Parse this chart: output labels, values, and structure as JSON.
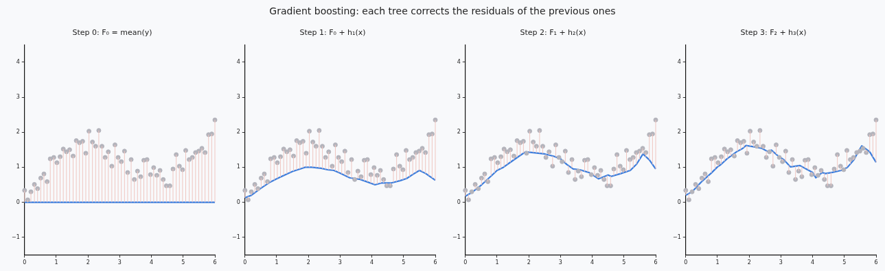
{
  "chart_data": [
    {
      "type": "other",
      "title": "Gradient boosting: each tree corrects the residuals of the previous ones"
    },
    {
      "type": "scatter",
      "title": "Step 0: F₀ = mean(y)",
      "xlim": [
        0,
        6
      ],
      "xticks": [
        0,
        1,
        2,
        3,
        4,
        5,
        6
      ],
      "ylim": [
        -1.5,
        4.5
      ],
      "yticks": [
        -1,
        0,
        1,
        2,
        3,
        4
      ],
      "grid": false,
      "legend": false,
      "series": [
        {
          "type": "scatter",
          "marker": "circle",
          "color": "#b4b4bc",
          "x": [
            0,
            0.1,
            0.2,
            0.31,
            0.41,
            0.51,
            0.61,
            0.71,
            0.81,
            0.92,
            1.02,
            1.12,
            1.22,
            1.32,
            1.42,
            1.53,
            1.63,
            1.73,
            1.83,
            1.93,
            2.03,
            2.14,
            2.24,
            2.34,
            2.44,
            2.54,
            2.64,
            2.75,
            2.85,
            2.95,
            3.05,
            3.15,
            3.25,
            3.36,
            3.46,
            3.56,
            3.66,
            3.76,
            3.86,
            3.97,
            4.07,
            4.17,
            4.27,
            4.37,
            4.47,
            4.58,
            4.68,
            4.78,
            4.88,
            4.98,
            5.08,
            5.19,
            5.29,
            5.39,
            5.49,
            5.59,
            5.69,
            5.8,
            5.9,
            6.0
          ],
          "values": [
            0.34,
            0.07,
            0.3,
            0.51,
            0.39,
            0.69,
            0.81,
            0.59,
            1.24,
            1.28,
            1.13,
            1.3,
            1.52,
            1.44,
            1.5,
            1.32,
            1.76,
            1.7,
            1.74,
            1.4,
            2.03,
            1.72,
            1.6,
            2.05,
            1.6,
            1.28,
            1.44,
            1.03,
            1.64,
            1.28,
            1.16,
            1.46,
            0.85,
            1.22,
            0.65,
            0.89,
            0.73,
            1.2,
            1.22,
            0.79,
            0.99,
            0.77,
            0.91,
            0.65,
            0.47,
            0.47,
            0.95,
            1.36,
            1.03,
            0.93,
            1.48,
            1.22,
            1.28,
            1.42,
            1.46,
            1.54,
            1.42,
            1.93,
            1.95,
            2.35
          ],
          "errors": [
            [
              0,
              0.34
            ],
            [
              0,
              0.07
            ],
            [
              0,
              0.3
            ],
            [
              0,
              0.51
            ],
            [
              0,
              0.39
            ],
            [
              0,
              0.69
            ],
            [
              0,
              0.81
            ],
            [
              0,
              0.59
            ],
            [
              0,
              1.24
            ],
            [
              0,
              1.28
            ],
            [
              0,
              1.13
            ],
            [
              0,
              1.3
            ],
            [
              0,
              1.52
            ],
            [
              0,
              1.44
            ],
            [
              0,
              1.5
            ],
            [
              0,
              1.32
            ],
            [
              0,
              1.76
            ],
            [
              0,
              1.7
            ],
            [
              0,
              1.74
            ],
            [
              0,
              1.4
            ],
            [
              0,
              2.03
            ],
            [
              0,
              1.72
            ],
            [
              0,
              1.6
            ],
            [
              0,
              2.05
            ],
            [
              0,
              1.6
            ],
            [
              0,
              1.28
            ],
            [
              0,
              1.44
            ],
            [
              0,
              1.03
            ],
            [
              0,
              1.64
            ],
            [
              0,
              1.28
            ],
            [
              0,
              1.16
            ],
            [
              0,
              1.46
            ],
            [
              0,
              0.85
            ],
            [
              0,
              1.22
            ],
            [
              0,
              0.65
            ],
            [
              0,
              0.89
            ],
            [
              0,
              0.73
            ],
            [
              0,
              1.2
            ],
            [
              0,
              1.22
            ],
            [
              0,
              0.79
            ],
            [
              0,
              0.99
            ],
            [
              0,
              0.77
            ],
            [
              0,
              0.91
            ],
            [
              0,
              0.65
            ],
            [
              0,
              0.47
            ],
            [
              0,
              0.47
            ],
            [
              0,
              0.95
            ],
            [
              0,
              1.36
            ],
            [
              0,
              1.03
            ],
            [
              0,
              0.93
            ],
            [
              0,
              1.48
            ],
            [
              0,
              1.22
            ],
            [
              0,
              1.28
            ],
            [
              0,
              1.42
            ],
            [
              0,
              1.46
            ],
            [
              0,
              1.54
            ],
            [
              0,
              1.42
            ],
            [
              0,
              1.93
            ],
            [
              0,
              1.95
            ],
            [
              0,
              2.35
            ]
          ]
        },
        {
          "type": "line",
          "color": "#3b7ddd",
          "x": [
            0,
            6
          ],
          "values": [
            0,
            0
          ]
        }
      ]
    },
    {
      "type": "scatter",
      "title": "Step 1: F₀ + h₁(x)",
      "xlim": [
        0,
        6
      ],
      "xticks": [
        0,
        1,
        2,
        3,
        4,
        5,
        6
      ],
      "ylim": [
        -1.5,
        4.5
      ],
      "yticks": [
        -1,
        0,
        1,
        2,
        3,
        4
      ],
      "grid": false,
      "legend": false,
      "series": [
        {
          "type": "scatter",
          "marker": "circle",
          "color": "#b4b4bc",
          "x": [
            0,
            0.1,
            0.2,
            0.31,
            0.41,
            0.51,
            0.61,
            0.71,
            0.81,
            0.92,
            1.02,
            1.12,
            1.22,
            1.32,
            1.42,
            1.53,
            1.63,
            1.73,
            1.83,
            1.93,
            2.03,
            2.14,
            2.24,
            2.34,
            2.44,
            2.54,
            2.64,
            2.75,
            2.85,
            2.95,
            3.05,
            3.15,
            3.25,
            3.36,
            3.46,
            3.56,
            3.66,
            3.76,
            3.86,
            3.97,
            4.07,
            4.17,
            4.27,
            4.37,
            4.47,
            4.58,
            4.68,
            4.78,
            4.88,
            4.98,
            5.08,
            5.19,
            5.29,
            5.39,
            5.49,
            5.59,
            5.69,
            5.8,
            5.9,
            6.0
          ],
          "values": [
            0.34,
            0.07,
            0.3,
            0.51,
            0.39,
            0.69,
            0.81,
            0.59,
            1.24,
            1.28,
            1.13,
            1.3,
            1.52,
            1.44,
            1.5,
            1.32,
            1.76,
            1.7,
            1.74,
            1.4,
            2.03,
            1.72,
            1.6,
            2.05,
            1.6,
            1.28,
            1.44,
            1.03,
            1.64,
            1.28,
            1.16,
            1.46,
            0.85,
            1.22,
            0.65,
            0.89,
            0.73,
            1.2,
            1.22,
            0.79,
            0.99,
            0.77,
            0.91,
            0.65,
            0.47,
            0.47,
            0.95,
            1.36,
            1.03,
            0.93,
            1.48,
            1.22,
            1.28,
            1.42,
            1.46,
            1.54,
            1.42,
            1.93,
            1.95,
            2.35
          ],
          "errors": [
            [
              0.13,
              0.34
            ],
            [
              0.07,
              0.17
            ],
            [
              0.2,
              0.3
            ],
            [
              0.27,
              0.51
            ],
            [
              0.34,
              0.39
            ],
            [
              0.41,
              0.69
            ],
            [
              0.47,
              0.81
            ],
            [
              0.53,
              0.59
            ],
            [
              0.58,
              1.24
            ],
            [
              0.63,
              1.28
            ],
            [
              0.68,
              1.13
            ],
            [
              0.72,
              1.3
            ],
            [
              0.77,
              1.52
            ],
            [
              0.81,
              1.44
            ],
            [
              0.85,
              1.5
            ],
            [
              0.89,
              1.32
            ],
            [
              0.92,
              1.76
            ],
            [
              0.95,
              1.7
            ],
            [
              0.98,
              1.74
            ],
            [
              1.0,
              1.4
            ],
            [
              1.0,
              2.03
            ],
            [
              1.0,
              1.72
            ],
            [
              0.99,
              1.6
            ],
            [
              0.98,
              2.05
            ],
            [
              0.96,
              1.6
            ],
            [
              0.94,
              1.28
            ],
            [
              0.93,
              1.44
            ],
            [
              0.92,
              1.03
            ],
            [
              0.89,
              1.64
            ],
            [
              0.85,
              1.28
            ],
            [
              0.81,
              1.16
            ],
            [
              0.77,
              1.46
            ],
            [
              0.72,
              0.85
            ],
            [
              0.69,
              1.22
            ],
            [
              0.65,
              0.68
            ],
            [
              0.67,
              0.89
            ],
            [
              0.64,
              0.73
            ],
            [
              0.61,
              1.2
            ],
            [
              0.58,
              1.22
            ],
            [
              0.54,
              0.79
            ],
            [
              0.51,
              0.99
            ],
            [
              0.52,
              0.77
            ],
            [
              0.54,
              0.91
            ],
            [
              0.55,
              0.65
            ],
            [
              0.47,
              0.55
            ],
            [
              0.47,
              0.55
            ],
            [
              0.57,
              0.95
            ],
            [
              0.59,
              1.36
            ],
            [
              0.62,
              1.03
            ],
            [
              0.64,
              0.93
            ],
            [
              0.67,
              1.48
            ],
            [
              0.73,
              1.22
            ],
            [
              0.79,
              1.28
            ],
            [
              0.85,
              1.42
            ],
            [
              0.9,
              1.46
            ],
            [
              0.87,
              1.54
            ],
            [
              0.82,
              1.42
            ],
            [
              0.76,
              1.93
            ],
            [
              0.69,
              1.95
            ],
            [
              0.63,
              2.35
            ]
          ]
        },
        {
          "type": "line",
          "color": "#3b7ddd",
          "x": [
            0,
            0.2,
            0.5,
            0.8,
            1,
            1.3,
            1.5,
            1.8,
            1.9,
            2.1,
            2.4,
            2.6,
            2.8,
            3,
            3.3,
            3.6,
            3.8,
            4.1,
            4.3,
            4.6,
            4.9,
            5.1,
            5.3,
            5.5,
            5.7,
            6
          ],
          "values": [
            0.13,
            0.2,
            0.4,
            0.58,
            0.67,
            0.8,
            0.88,
            0.97,
            1.0,
            1.0,
            0.97,
            0.93,
            0.91,
            0.83,
            0.7,
            0.66,
            0.6,
            0.5,
            0.55,
            0.55,
            0.62,
            0.68,
            0.8,
            0.91,
            0.82,
            0.63
          ]
        }
      ]
    },
    {
      "type": "scatter",
      "title": "Step 2: F₁ + h₂(x)",
      "xlim": [
        0,
        6
      ],
      "xticks": [
        0,
        1,
        2,
        3,
        4,
        5,
        6
      ],
      "ylim": [
        -1.5,
        4.5
      ],
      "yticks": [
        -1,
        0,
        1,
        2,
        3,
        4
      ],
      "grid": false,
      "legend": false,
      "series": [
        {
          "type": "scatter",
          "marker": "circle",
          "color": "#b4b4bc",
          "x": [
            0,
            0.1,
            0.2,
            0.31,
            0.41,
            0.51,
            0.61,
            0.71,
            0.81,
            0.92,
            1.02,
            1.12,
            1.22,
            1.32,
            1.42,
            1.53,
            1.63,
            1.73,
            1.83,
            1.93,
            2.03,
            2.14,
            2.24,
            2.34,
            2.44,
            2.54,
            2.64,
            2.75,
            2.85,
            2.95,
            3.05,
            3.15,
            3.25,
            3.36,
            3.46,
            3.56,
            3.66,
            3.76,
            3.86,
            3.97,
            4.07,
            4.17,
            4.27,
            4.37,
            4.47,
            4.58,
            4.68,
            4.78,
            4.88,
            4.98,
            5.08,
            5.19,
            5.29,
            5.39,
            5.49,
            5.59,
            5.69,
            5.8,
            5.9,
            6.0
          ],
          "values": [
            0.34,
            0.07,
            0.3,
            0.51,
            0.39,
            0.69,
            0.81,
            0.59,
            1.24,
            1.28,
            1.13,
            1.3,
            1.52,
            1.44,
            1.5,
            1.32,
            1.76,
            1.7,
            1.74,
            1.4,
            2.03,
            1.72,
            1.6,
            2.05,
            1.6,
            1.28,
            1.44,
            1.03,
            1.64,
            1.28,
            1.16,
            1.46,
            0.85,
            1.22,
            0.65,
            0.89,
            0.73,
            1.2,
            1.22,
            0.79,
            0.99,
            0.77,
            0.91,
            0.65,
            0.47,
            0.47,
            0.95,
            1.36,
            1.03,
            0.93,
            1.48,
            1.22,
            1.28,
            1.42,
            1.46,
            1.54,
            1.42,
            1.93,
            1.95,
            2.35
          ],
          "errors": [
            [
              0.17,
              0.34
            ],
            [
              0.07,
              0.23
            ],
            null,
            [
              0.36,
              0.51
            ],
            null,
            [
              0.5,
              0.69
            ],
            [
              0.58,
              0.81
            ],
            [
              0.59,
              0.67
            ],
            [
              0.75,
              1.24
            ],
            [
              0.84,
              1.28
            ],
            [
              0.92,
              1.13
            ],
            [
              0.96,
              1.3
            ],
            [
              1.01,
              1.52
            ],
            [
              1.08,
              1.44
            ],
            [
              1.14,
              1.5
            ],
            [
              1.21,
              1.32
            ],
            [
              1.28,
              1.76
            ],
            [
              1.34,
              1.7
            ],
            [
              1.4,
              1.74
            ],
            null,
            [
              1.43,
              2.03
            ],
            [
              1.42,
              1.72
            ],
            [
              1.41,
              1.6
            ],
            [
              1.4,
              2.05
            ],
            [
              1.39,
              1.6
            ],
            [
              1.28,
              1.37
            ],
            [
              1.35,
              1.44
            ],
            [
              1.03,
              1.32
            ],
            [
              1.29,
              1.64
            ],
            null,
            null,
            [
              1.12,
              1.46
            ],
            [
              0.85,
              1.05
            ],
            [
              0.98,
              1.22
            ],
            [
              0.65,
              0.94
            ],
            null,
            [
              0.73,
              0.91
            ],
            [
              0.88,
              1.2
            ],
            [
              0.86,
              1.22
            ],
            null,
            [
              0.75,
              0.99
            ],
            [
              0.69,
              0.77
            ],
            [
              0.7,
              0.91
            ],
            [
              0.65,
              0.73
            ],
            [
              0.47,
              0.77
            ],
            [
              0.47,
              0.75
            ],
            [
              0.76,
              0.95
            ],
            [
              0.79,
              1.36
            ],
            [
              0.81,
              1.03
            ],
            [
              0.84,
              0.93
            ],
            [
              0.87,
              1.48
            ],
            [
              0.91,
              1.22
            ],
            [
              0.99,
              1.28
            ],
            [
              1.08,
              1.42
            ],
            [
              1.22,
              1.46
            ],
            [
              1.37,
              1.54
            ],
            [
              1.29,
              1.42
            ],
            [
              1.21,
              1.93
            ],
            [
              1.08,
              1.95
            ],
            [
              0.95,
              2.35
            ]
          ]
        },
        {
          "type": "line",
          "color": "#3b7ddd",
          "x": [
            0,
            0.2,
            0.5,
            0.8,
            1,
            1.2,
            1.4,
            1.7,
            1.9,
            2.2,
            2.5,
            2.8,
            3,
            3.2,
            3.4,
            3.6,
            3.9,
            4.2,
            4.5,
            4.6,
            4.9,
            5.2,
            5.4,
            5.6,
            5.8,
            6
          ],
          "values": [
            0.17,
            0.28,
            0.49,
            0.74,
            0.91,
            1.0,
            1.13,
            1.32,
            1.44,
            1.41,
            1.38,
            1.31,
            1.24,
            1.08,
            0.95,
            0.93,
            0.85,
            0.67,
            0.78,
            0.74,
            0.82,
            0.91,
            1.09,
            1.38,
            1.21,
            0.95
          ]
        }
      ]
    },
    {
      "type": "scatter",
      "title": "Step 3: F₂ + h₃(x)",
      "xlim": [
        0,
        6
      ],
      "xticks": [
        0,
        1,
        2,
        3,
        4,
        5,
        6
      ],
      "ylim": [
        -1.5,
        4.5
      ],
      "yticks": [
        -1,
        0,
        1,
        2,
        3,
        4
      ],
      "grid": false,
      "legend": false,
      "series": [
        {
          "type": "scatter",
          "marker": "circle",
          "color": "#b4b4bc",
          "x": [
            0,
            0.1,
            0.2,
            0.31,
            0.41,
            0.51,
            0.61,
            0.71,
            0.81,
            0.92,
            1.02,
            1.12,
            1.22,
            1.32,
            1.42,
            1.53,
            1.63,
            1.73,
            1.83,
            1.93,
            2.03,
            2.14,
            2.24,
            2.34,
            2.44,
            2.54,
            2.64,
            2.75,
            2.85,
            2.95,
            3.05,
            3.15,
            3.25,
            3.36,
            3.46,
            3.56,
            3.66,
            3.76,
            3.86,
            3.97,
            4.07,
            4.17,
            4.27,
            4.37,
            4.47,
            4.58,
            4.68,
            4.78,
            4.88,
            4.98,
            5.08,
            5.19,
            5.29,
            5.39,
            5.49,
            5.59,
            5.69,
            5.8,
            5.9,
            6.0
          ],
          "values": [
            0.34,
            0.07,
            0.3,
            0.51,
            0.39,
            0.69,
            0.81,
            0.59,
            1.24,
            1.28,
            1.13,
            1.3,
            1.52,
            1.44,
            1.5,
            1.32,
            1.76,
            1.7,
            1.74,
            1.4,
            2.03,
            1.72,
            1.6,
            2.05,
            1.6,
            1.28,
            1.44,
            1.03,
            1.64,
            1.28,
            1.16,
            1.46,
            0.85,
            1.22,
            0.65,
            0.89,
            0.73,
            1.2,
            1.22,
            0.79,
            0.99,
            0.77,
            0.91,
            0.65,
            0.47,
            0.47,
            0.95,
            1.36,
            1.03,
            0.93,
            1.48,
            1.22,
            1.28,
            1.42,
            1.46,
            1.54,
            1.42,
            1.93,
            1.95,
            2.35
          ],
          "errors": [
            [
              0.2,
              0.34
            ],
            [
              0.07,
              0.25
            ],
            null,
            [
              0.41,
              0.51
            ],
            [
              0.39,
              0.5
            ],
            [
              0.6,
              0.69
            ],
            [
              0.68,
              0.81
            ],
            [
              0.59,
              0.76
            ],
            [
              0.84,
              1.24
            ],
            [
              0.94,
              1.28
            ],
            [
              1.02,
              1.13
            ],
            [
              1.09,
              1.3
            ],
            [
              1.17,
              1.52
            ],
            [
              1.25,
              1.44
            ],
            [
              1.32,
              1.5
            ],
            [
              1.32,
              1.39
            ],
            [
              1.45,
              1.76
            ],
            [
              1.5,
              1.7
            ],
            [
              1.56,
              1.74
            ],
            [
              1.4,
              1.62
            ],
            [
              1.6,
              2.03
            ],
            [
              1.58,
              1.72
            ],
            [
              1.57,
              1.6
            ],
            [
              1.55,
              2.05
            ],
            [
              1.52,
              1.6
            ],
            [
              1.28,
              1.47
            ],
            null,
            [
              1.03,
              1.45
            ],
            [
              1.37,
              1.64
            ],
            null,
            [
              1.16,
              1.24
            ],
            [
              1.16,
              1.46
            ],
            [
              0.85,
              1.06
            ],
            [
              1.02,
              1.22
            ],
            [
              0.65,
              1.03
            ],
            [
              0.89,
              1.04
            ],
            [
              0.73,
              1.02
            ],
            [
              0.97,
              1.2
            ],
            [
              0.92,
              1.22
            ],
            [
              0.79,
              0.87
            ],
            [
              0.75,
              0.99
            ],
            null,
            [
              0.83,
              0.91
            ],
            [
              0.65,
              0.83
            ],
            [
              0.47,
              0.83
            ],
            [
              0.47,
              0.85
            ],
            [
              0.87,
              0.95
            ],
            [
              0.89,
              1.36
            ],
            [
              0.91,
              1.03
            ],
            null,
            [
              0.99,
              1.48
            ],
            [
              1.09,
              1.22
            ],
            [
              1.2,
              1.28
            ],
            null,
            null,
            null,
            [
              1.42,
              1.5
            ],
            [
              1.44,
              1.93
            ],
            [
              1.29,
              1.95
            ],
            [
              1.14,
              2.35
            ]
          ]
        },
        {
          "type": "line",
          "color": "#3b7ddd",
          "x": [
            0,
            0.2,
            0.5,
            0.8,
            1,
            1.1,
            1.3,
            1.6,
            1.8,
            1.9,
            2.1,
            2.4,
            2.6,
            2.7,
            2.9,
            3.1,
            3.3,
            3.6,
            3.8,
            4.0,
            4.1,
            4.3,
            4.4,
            4.6,
            4.9,
            5.1,
            5.3,
            5.45,
            5.55,
            5.8,
            6
          ],
          "values": [
            0.2,
            0.3,
            0.59,
            0.83,
            1.01,
            1.07,
            1.24,
            1.44,
            1.54,
            1.62,
            1.59,
            1.54,
            1.44,
            1.49,
            1.33,
            1.21,
            1.01,
            1.05,
            0.95,
            0.85,
            0.7,
            0.85,
            0.82,
            0.85,
            0.91,
            1.0,
            1.21,
            1.46,
            1.61,
            1.44,
            1.14
          ]
        }
      ]
    }
  ]
}
